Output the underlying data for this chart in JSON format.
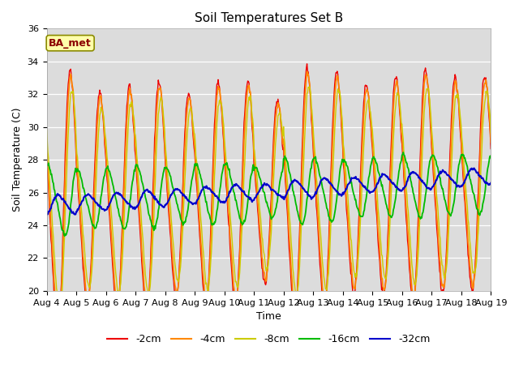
{
  "title": "Soil Temperatures Set B",
  "xlabel": "Time",
  "ylabel": "Soil Temperature (C)",
  "ylim": [
    20,
    36
  ],
  "xlim": [
    0,
    360
  ],
  "bg_color": "#dcdcdc",
  "annotation_text": "BA_met",
  "annotation_color": "#8b0000",
  "annotation_bg": "#ffffaa",
  "annotation_border": "#8b8b00",
  "series_colors": {
    "-2cm": "#ee0000",
    "-4cm": "#ff8800",
    "-8cm": "#cccc00",
    "-16cm": "#00bb00",
    "-32cm": "#0000cc"
  },
  "series_widths": {
    "-2cm": 1.0,
    "-4cm": 1.2,
    "-8cm": 1.0,
    "-16cm": 1.3,
    "-32cm": 1.5
  },
  "tick_labels": [
    "Aug 4",
    "Aug 5",
    "Aug 6",
    "Aug 7",
    "Aug 8",
    "Aug 9",
    "Aug 10",
    "Aug 11",
    "Aug 12",
    "Aug 13",
    "Aug 14",
    "Aug 15",
    "Aug 16",
    "Aug 17",
    "Aug 18",
    "Aug 19"
  ],
  "tick_positions": [
    0,
    24,
    48,
    72,
    96,
    120,
    144,
    168,
    192,
    216,
    240,
    264,
    288,
    312,
    336,
    360
  ],
  "yticks": [
    20,
    22,
    24,
    26,
    28,
    30,
    32,
    34,
    36
  ],
  "depth_params": {
    "-2cm": {
      "base": 25.5,
      "amp": 6.5,
      "phase": 14.0,
      "trend": 0.003
    },
    "-4cm": {
      "base": 25.5,
      "amp": 6.2,
      "phase": 14.5,
      "trend": 0.003
    },
    "-8cm": {
      "base": 25.5,
      "amp": 5.5,
      "phase": 15.5,
      "trend": 0.003
    },
    "-16cm": {
      "base": 25.5,
      "amp": 1.8,
      "phase": 20.0,
      "trend": 0.003
    },
    "-32cm": {
      "base": 25.2,
      "amp": 0.5,
      "phase": 28.0,
      "trend": 0.005
    }
  }
}
